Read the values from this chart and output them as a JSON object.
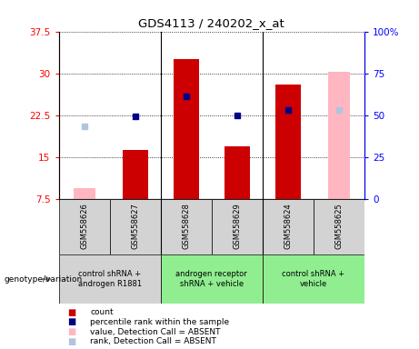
{
  "title": "GDS4113 / 240202_x_at",
  "samples": [
    "GSM558626",
    "GSM558627",
    "GSM558628",
    "GSM558629",
    "GSM558624",
    "GSM558625"
  ],
  "ylim_left": [
    7.5,
    37.5
  ],
  "ylim_right": [
    0,
    100
  ],
  "yticks_left": [
    7.5,
    15.0,
    22.5,
    30.0,
    37.5
  ],
  "yticks_right": [
    0,
    25,
    50,
    75,
    100
  ],
  "ytick_labels_left": [
    "7.5",
    "15",
    "22.5",
    "30",
    "37.5"
  ],
  "ytick_labels_right": [
    "0",
    "25",
    "50",
    "75",
    "100%"
  ],
  "bar_values_red": [
    null,
    16.2,
    32.5,
    17.0,
    28.0,
    null
  ],
  "bar_values_pink": [
    9.5,
    null,
    null,
    null,
    null,
    30.2
  ],
  "dot_blue": [
    null,
    22.3,
    25.8,
    22.5,
    23.5,
    null
  ],
  "dot_lightblue": [
    20.5,
    null,
    null,
    null,
    null,
    23.5
  ],
  "bar_color_red": "#cc0000",
  "bar_color_pink": "#ffb6c1",
  "dot_color_blue": "#00008b",
  "dot_color_lightblue": "#b0c4de",
  "bar_width": 0.5,
  "group_bg_colors": [
    "#c8c8c8",
    "#c8c8c8",
    "#c8c8c8",
    "#c8c8c8",
    "#90ee90",
    "#90ee90"
  ],
  "sample_bg_colors": [
    "#d3d3d3",
    "#d3d3d3",
    "#d3d3d3",
    "#d3d3d3",
    "#d3d3d3",
    "#d3d3d3"
  ],
  "group_labels": [
    {
      "text": "control shRNA +\nandrogen R1881",
      "xmin": 0,
      "xmax": 1,
      "color": "#d3d3d3"
    },
    {
      "text": "androgen receptor\nshRNA + vehicle",
      "xmin": 2,
      "xmax": 3,
      "color": "#90ee90"
    },
    {
      "text": "control shRNA +\nvehicle",
      "xmin": 4,
      "xmax": 5,
      "color": "#90ee90"
    }
  ],
  "legend_items": [
    {
      "color": "#cc0000",
      "label": "count"
    },
    {
      "color": "#000080",
      "label": "percentile rank within the sample"
    },
    {
      "color": "#ffb6c1",
      "label": "value, Detection Call = ABSENT"
    },
    {
      "color": "#b0c4de",
      "label": "rank, Detection Call = ABSENT"
    }
  ],
  "genotype_label": "genotype/variation"
}
